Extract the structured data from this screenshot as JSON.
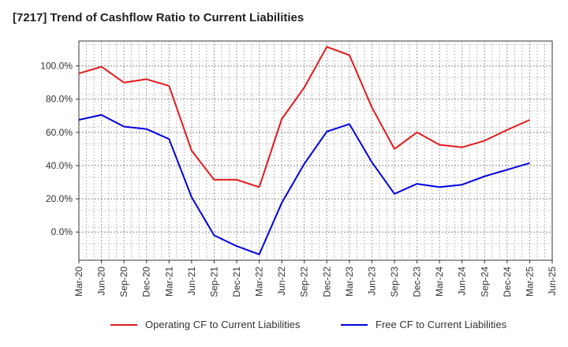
{
  "chart_data": {
    "type": "line",
    "title": "[7217]  Trend of Cashflow Ratio to Current Liabilities",
    "x_ticks": [
      "Mar-20",
      "Jun-20",
      "Sep-20",
      "Dec-20",
      "Mar-21",
      "Jun-21",
      "Sep-21",
      "Dec-21",
      "Mar-22",
      "Jun-22",
      "Sep-22",
      "Dec-22",
      "Mar-23",
      "Jun-23",
      "Sep-23",
      "Dec-23",
      "Mar-24",
      "Jun-24",
      "Sep-24",
      "Dec-24",
      "Mar-25",
      "Jun-25"
    ],
    "y_ticks": [
      0,
      20,
      40,
      60,
      80,
      100
    ],
    "y_tick_labels": [
      "0.0%",
      "20.0%",
      "40.0%",
      "60.0%",
      "80.0%",
      "100.0%"
    ],
    "ylim": [
      -17,
      115
    ],
    "grid": true,
    "legend_position": "bottom",
    "series": [
      {
        "name": "Operating CF to Current Liabilities",
        "color": "#e31a1c",
        "values": [
          95.5,
          99.5,
          90,
          92,
          88,
          49,
          31.5,
          31.5,
          27,
          68,
          87,
          111.5,
          106.5,
          75,
          50,
          60,
          52.5,
          51,
          55,
          61.5,
          67.5
        ]
      },
      {
        "name": "Free CF to Current Liabilities",
        "color": "#0000e0",
        "values": [
          67.5,
          70.5,
          63.5,
          62,
          56,
          21,
          -2,
          -8.5,
          -13.5,
          17.5,
          41,
          60.5,
          65,
          42,
          23,
          29,
          27,
          28.5,
          33.5,
          37.5,
          41.5
        ]
      }
    ]
  }
}
